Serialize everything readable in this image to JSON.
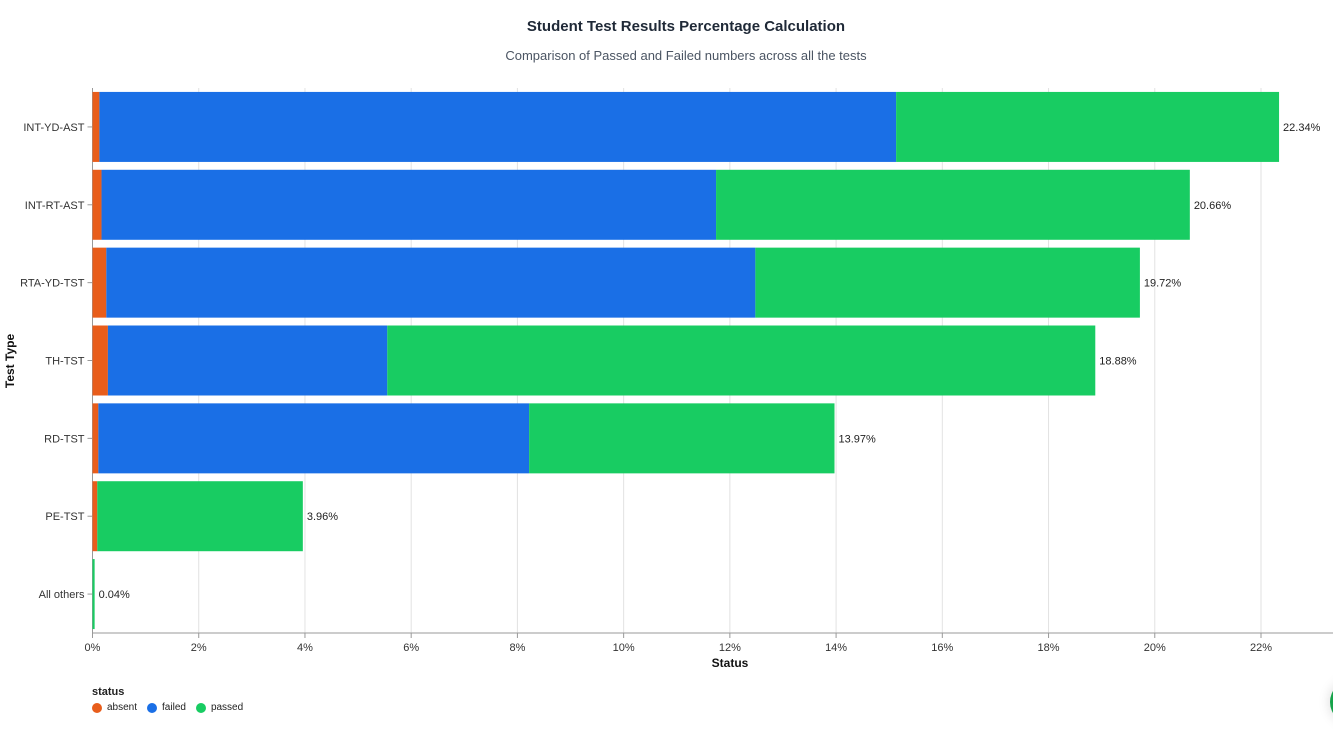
{
  "chart_data": {
    "type": "bar",
    "orientation": "horizontal",
    "stacked": true,
    "title": "Student Test Results Percentage Calculation",
    "subtitle": "Comparison of Passed and Failed numbers across all the tests",
    "xlabel": "Status",
    "ylabel": "Test Type",
    "xlim": [
      0,
      23.35
    ],
    "xticks": [
      "0%",
      "2%",
      "4%",
      "6%",
      "8%",
      "10%",
      "12%",
      "14%",
      "16%",
      "18%",
      "20%",
      "22%"
    ],
    "grid": true,
    "categories": [
      "INT-YD-AST",
      "INT-RT-AST",
      "RTA-YD-TST",
      "TH-TST",
      "RD-TST",
      "PE-TST",
      "All others"
    ],
    "series": [
      {
        "name": "absent",
        "color": "#e85d1b",
        "values": [
          0.13,
          0.17,
          0.26,
          0.29,
          0.11,
          0.09,
          0
        ]
      },
      {
        "name": "failed",
        "color": "#1a6fe6",
        "values": [
          15.0,
          11.57,
          12.22,
          5.26,
          8.11,
          0,
          0
        ]
      },
      {
        "name": "passed",
        "color": "#18cc62",
        "values": [
          7.21,
          8.92,
          7.24,
          13.33,
          5.75,
          3.87,
          0.04
        ]
      }
    ],
    "totals": [
      "22.34%",
      "20.66%",
      "19.72%",
      "18.88%",
      "13.97%",
      "3.96%",
      "0.04%"
    ],
    "legend": {
      "title": "status",
      "position": "bottom-left"
    }
  }
}
